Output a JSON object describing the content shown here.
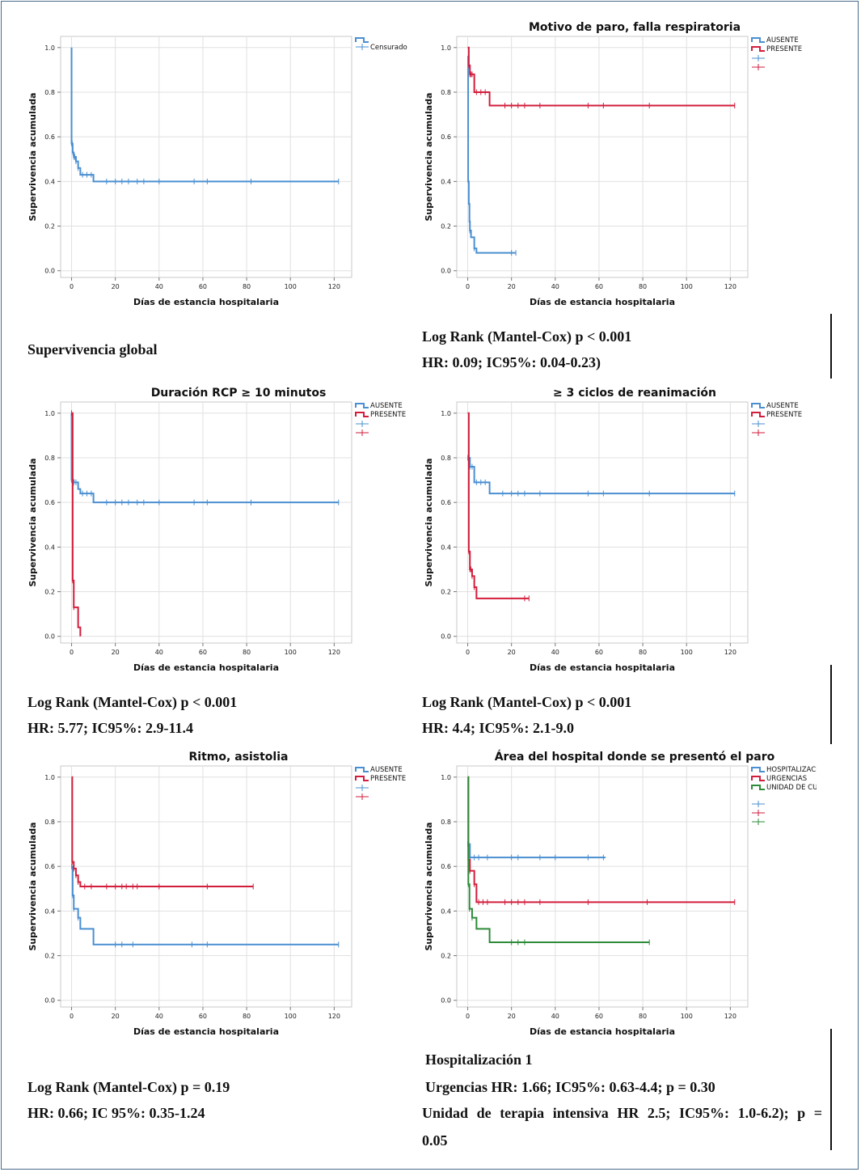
{
  "chart_data": [
    {
      "type": "line",
      "title": "",
      "xlabel": "Días de estancia hospitalaria",
      "ylabel": "Supervivencia acumulada",
      "xlim": [
        -5,
        128
      ],
      "ylim": [
        -0.03,
        1.05
      ],
      "xticks": [
        "0",
        "20",
        "40",
        "60",
        "80",
        "100",
        "120"
      ],
      "yticks": [
        "0.0",
        "0.2",
        "0.4",
        "0.6",
        "0.8",
        "1.0"
      ],
      "legend": [
        "Censurado"
      ],
      "series": [
        {
          "name": "Supervivencia global",
          "color": "#4a8fd1",
          "steps": [
            [
              0,
              1.0
            ],
            [
              0,
              0.57
            ],
            [
              0.5,
              0.53
            ],
            [
              1,
              0.51
            ],
            [
              2,
              0.49
            ],
            [
              3,
              0.46
            ],
            [
              4,
              0.43
            ],
            [
              10,
              0.4
            ],
            [
              122,
              0.4
            ]
          ],
          "censors": [
            0,
            0.3,
            0.6,
            1,
            1.5,
            2,
            3,
            5,
            7,
            9,
            16,
            20,
            23,
            26,
            30,
            33,
            40,
            56,
            62,
            82,
            122
          ]
        }
      ]
    },
    {
      "type": "line",
      "title": "Motivo de paro, falla respiratoria",
      "xlabel": "Días de estancia hospitalaria",
      "ylabel": "Supervivencia acumulada",
      "xlim": [
        -5,
        128
      ],
      "ylim": [
        -0.03,
        1.05
      ],
      "xticks": [
        "0",
        "20",
        "40",
        "60",
        "80",
        "100",
        "120"
      ],
      "yticks": [
        "0.0",
        "0.2",
        "0.4",
        "0.6",
        "0.8",
        "1.0"
      ],
      "legend": [
        "AUSENTE",
        "PRESENTE",
        "",
        ""
      ],
      "series": [
        {
          "name": "AUSENTE",
          "color": "#4a8fd1",
          "steps": [
            [
              0,
              0.95
            ],
            [
              0.2,
              0.4
            ],
            [
              0.5,
              0.3
            ],
            [
              0.8,
              0.22
            ],
            [
              1,
              0.18
            ],
            [
              1.5,
              0.15
            ],
            [
              3,
              0.1
            ],
            [
              4,
              0.08
            ],
            [
              22,
              0.08
            ]
          ],
          "censors": [
            0,
            0.3,
            0.6,
            1,
            3,
            20,
            22
          ]
        },
        {
          "name": "PRESENTE",
          "color": "#d21e3c",
          "steps": [
            [
              0,
              1.0
            ],
            [
              0.5,
              0.92
            ],
            [
              1,
              0.88
            ],
            [
              3,
              0.8
            ],
            [
              10,
              0.74
            ],
            [
              122,
              0.74
            ]
          ],
          "censors": [
            0.5,
            1,
            1.5,
            2,
            4,
            6,
            8,
            17,
            20,
            23,
            26,
            33,
            55,
            62,
            83,
            122
          ]
        }
      ]
    },
    {
      "type": "line",
      "title": "Duración RCP ≥ 10 minutos",
      "xlabel": "Días de estancia hospitalaria",
      "ylabel": "Supervivencia acumulada",
      "xlim": [
        -5,
        128
      ],
      "ylim": [
        -0.03,
        1.05
      ],
      "xticks": [
        "0",
        "20",
        "40",
        "60",
        "80",
        "100",
        "120"
      ],
      "yticks": [
        "0.0",
        "0.2",
        "0.4",
        "0.6",
        "0.8",
        "1.0"
      ],
      "legend": [
        "AUSENTE",
        "PRESENTE",
        "",
        ""
      ],
      "series": [
        {
          "name": "AUSENTE",
          "color": "#4a8fd1",
          "steps": [
            [
              0,
              1.0
            ],
            [
              0,
              0.7
            ],
            [
              1,
              0.69
            ],
            [
              3,
              0.66
            ],
            [
              4,
              0.64
            ],
            [
              10,
              0.6
            ],
            [
              122,
              0.6
            ]
          ],
          "censors": [
            0,
            0.5,
            1,
            2,
            5,
            7,
            9,
            16,
            20,
            23,
            26,
            30,
            33,
            40,
            56,
            62,
            82,
            122
          ]
        },
        {
          "name": "PRESENTE",
          "color": "#d21e3c",
          "steps": [
            [
              0,
              1.0
            ],
            [
              0.5,
              0.25
            ],
            [
              1,
              0.13
            ],
            [
              3,
              0.04
            ],
            [
              4,
              0.0
            ]
          ],
          "censors": [
            0,
            0.5,
            1
          ]
        }
      ]
    },
    {
      "type": "line",
      "title": "≥ 3 ciclos de reanimación",
      "xlabel": "Días de estancia hospitalaria",
      "ylabel": "Supervivencia acumulada",
      "xlim": [
        -5,
        128
      ],
      "ylim": [
        -0.03,
        1.05
      ],
      "xticks": [
        "0",
        "20",
        "40",
        "60",
        "80",
        "100",
        "120"
      ],
      "yticks": [
        "0.0",
        "0.2",
        "0.4",
        "0.6",
        "0.8",
        "1.0"
      ],
      "legend": [
        "AUSENTE",
        "PRESENTE",
        "",
        ""
      ],
      "series": [
        {
          "name": "AUSENTE",
          "color": "#4a8fd1",
          "steps": [
            [
              0,
              0.8
            ],
            [
              1,
              0.76
            ],
            [
              3,
              0.69
            ],
            [
              10,
              0.64
            ],
            [
              122,
              0.64
            ]
          ],
          "censors": [
            0,
            1,
            2,
            4,
            6,
            8,
            16,
            20,
            23,
            26,
            33,
            55,
            62,
            83,
            122
          ]
        },
        {
          "name": "PRESENTE",
          "color": "#d21e3c",
          "steps": [
            [
              0,
              1.0
            ],
            [
              0.5,
              0.38
            ],
            [
              1,
              0.3
            ],
            [
              2,
              0.27
            ],
            [
              3,
              0.22
            ],
            [
              4,
              0.17
            ],
            [
              28,
              0.17
            ]
          ],
          "censors": [
            0.5,
            1,
            1.5,
            2,
            3,
            26,
            28
          ]
        }
      ]
    },
    {
      "type": "line",
      "title": "Ritmo, asistolia",
      "xlabel": "Días de estancia hospitalaria",
      "ylabel": "Supervivencia acumulada",
      "xlim": [
        -5,
        128
      ],
      "ylim": [
        -0.03,
        1.05
      ],
      "xticks": [
        "0",
        "20",
        "40",
        "60",
        "80",
        "100",
        "120"
      ],
      "yticks": [
        "0.0",
        "0.2",
        "0.4",
        "0.6",
        "0.8",
        "1.0"
      ],
      "legend": [
        "AUSENTE",
        "PRESENTE",
        "",
        ""
      ],
      "series": [
        {
          "name": "AUSENTE",
          "color": "#4a8fd1",
          "steps": [
            [
              0,
              0.6
            ],
            [
              0.5,
              0.47
            ],
            [
              1,
              0.41
            ],
            [
              3,
              0.37
            ],
            [
              4,
              0.32
            ],
            [
              10,
              0.25
            ],
            [
              122,
              0.25
            ]
          ],
          "censors": [
            0,
            0.5,
            1,
            3,
            20,
            23,
            28,
            55,
            62,
            122
          ]
        },
        {
          "name": "PRESENTE",
          "color": "#d21e3c",
          "steps": [
            [
              0,
              1.0
            ],
            [
              0.3,
              0.62
            ],
            [
              1,
              0.59
            ],
            [
              2,
              0.56
            ],
            [
              3,
              0.53
            ],
            [
              4,
              0.51
            ],
            [
              83,
              0.51
            ]
          ],
          "censors": [
            0.3,
            1,
            2,
            3,
            6,
            9,
            16,
            20,
            23,
            25,
            28,
            30,
            40,
            62,
            83
          ]
        }
      ]
    },
    {
      "type": "line",
      "title": "Área del hospital donde se presentó el paro",
      "xlabel": "Días de estancia hospitalaria",
      "ylabel": "Supervivencia acumulada",
      "xlim": [
        -5,
        128
      ],
      "ylim": [
        -0.03,
        1.05
      ],
      "xticks": [
        "0",
        "20",
        "40",
        "60",
        "80",
        "100",
        "120"
      ],
      "yticks": [
        "0.0",
        "0.2",
        "0.4",
        "0.6",
        "0.8",
        "1.0"
      ],
      "legend": [
        "HOSPITALIZACIÓN",
        "URGENCIAS",
        "UNIDAD DE CUIDADOS INTENSIVOS",
        "",
        "",
        ""
      ],
      "series": [
        {
          "name": "HOSPITALIZACIÓN",
          "color": "#4a8fd1",
          "steps": [
            [
              0,
              0.7
            ],
            [
              1,
              0.64
            ],
            [
              63,
              0.64
            ]
          ],
          "censors": [
            0,
            1,
            3,
            5,
            9,
            20,
            23,
            33,
            40,
            55,
            62
          ]
        },
        {
          "name": "URGENCIAS",
          "color": "#d21e3c",
          "steps": [
            [
              0,
              1.0
            ],
            [
              0.3,
              0.63
            ],
            [
              1,
              0.58
            ],
            [
              3,
              0.52
            ],
            [
              4,
              0.44
            ],
            [
              122,
              0.44
            ]
          ],
          "censors": [
            0.3,
            1,
            3,
            5,
            7,
            9,
            17,
            20,
            23,
            26,
            33,
            55,
            82,
            122
          ]
        },
        {
          "name": "UNIDAD DE CUIDADOS INTENSIVOS",
          "color": "#2e8b3a",
          "steps": [
            [
              0,
              1.0
            ],
            [
              0.3,
              0.52
            ],
            [
              0.8,
              0.41
            ],
            [
              2,
              0.37
            ],
            [
              4,
              0.32
            ],
            [
              10,
              0.26
            ],
            [
              83,
              0.26
            ]
          ],
          "censors": [
            0.3,
            0.8,
            2,
            20,
            23,
            26,
            83
          ]
        }
      ]
    }
  ],
  "captions": {
    "c1": "Supervivencia global",
    "c2a": "Log Rank (Mantel-Cox) p < 0.001",
    "c2b": "HR: 0.09; IC95%: 0.04-0.23)",
    "c3a": "Log Rank (Mantel-Cox) p < 0.001",
    "c3b": "HR: 5.77; IC95%: 2.9-11.4",
    "c4a": "Log Rank (Mantel-Cox) p < 0.001",
    "c4b": "HR: 4.4; IC95%: 2.1-9.0",
    "c5a": "Log Rank (Mantel-Cox) p = 0.19",
    "c5b": "HR: 0.66; IC 95%: 0.35-1.24",
    "c6a": "Hospitalización 1",
    "c6b": "Urgencias HR: 1.66; IC95%: 0.63-4.4; p = 0.30",
    "c6c": "Unidad de terapia intensiva HR 2.5; IC95%: 1.0-6.2); p =",
    "c6d": "0.05"
  }
}
